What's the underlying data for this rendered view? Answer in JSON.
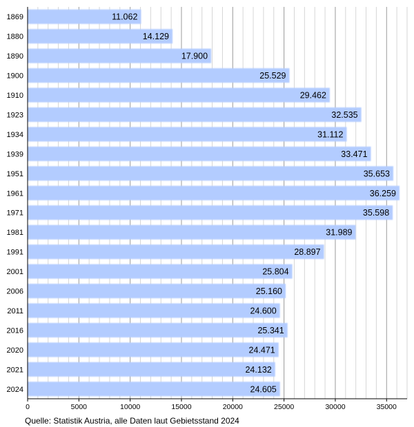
{
  "chart_data": {
    "type": "bar",
    "orientation": "horizontal",
    "categories": [
      "1869",
      "1880",
      "1890",
      "1900",
      "1910",
      "1923",
      "1934",
      "1939",
      "1951",
      "1961",
      "1971",
      "1981",
      "1991",
      "2001",
      "2006",
      "2011",
      "2016",
      "2020",
      "2021",
      "2024"
    ],
    "values": [
      11062,
      14129,
      17900,
      25529,
      29462,
      32535,
      31112,
      33471,
      35653,
      36259,
      35598,
      31989,
      28897,
      25804,
      25160,
      24600,
      25341,
      24471,
      24132,
      24605
    ],
    "value_labels": [
      "11.062",
      "14.129",
      "17.900",
      "25.529",
      "29.462",
      "32.535",
      "31.112",
      "33.471",
      "35.653",
      "36.259",
      "35.598",
      "31.989",
      "28.897",
      "25.804",
      "25.160",
      "24.600",
      "25.341",
      "24.471",
      "24.132",
      "24.605"
    ],
    "xlim": [
      0,
      37000
    ],
    "x_ticks": [
      0,
      5000,
      10000,
      15000,
      20000,
      25000,
      30000,
      35000
    ],
    "x_tick_labels": [
      "0",
      "5000",
      "10000",
      "15000",
      "20000",
      "25000",
      "30000",
      "35000"
    ],
    "title": "",
    "xlabel": "",
    "ylabel": "",
    "grid": true,
    "bar_color": "#b3ccff",
    "source": "Quelle: Statistik Austria, alle Daten laut Gebietsstand 2024"
  }
}
